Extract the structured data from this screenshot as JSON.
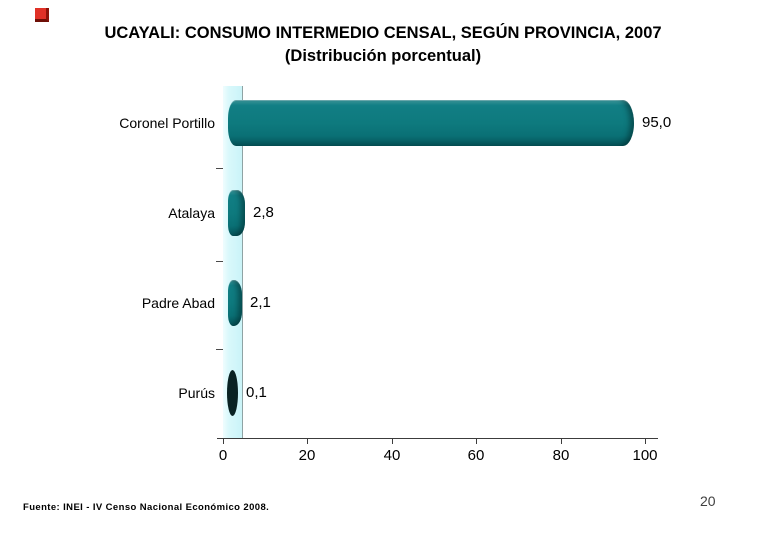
{
  "slide": {
    "title_line1": "UCAYALI: CONSUMO INTERMEDIO CENSAL, SEGÚN PROVINCIA, 2007",
    "title_line2": "(Distribución porcentual)",
    "source": "Fuente: INEI - IV Censo Nacional Económico 2008.",
    "page_number": "20",
    "accent_color": "#e03127"
  },
  "chart_data": {
    "type": "bar",
    "orientation": "horizontal",
    "title": "UCAYALI: CONSUMO INTERMEDIO CENSAL, SEGÚN PROVINCIA, 2007",
    "subtitle": "(Distribución porcentual)",
    "categories": [
      "Coronel Portillo",
      "Atalaya",
      "Padre Abad",
      "Purús"
    ],
    "values": [
      95.0,
      2.8,
      2.1,
      0.1
    ],
    "value_labels": [
      "95,0",
      "2,8",
      "2,1",
      "0,1"
    ],
    "x_ticks": [
      0,
      20,
      40,
      60,
      80,
      100
    ],
    "xlim": [
      0,
      100
    ],
    "grid": false,
    "legend": false,
    "bar_color": "#0e7a7e",
    "tiny_bar_color": "#0a2223",
    "wall_color": "#c9f3f8",
    "background_color": "#ffffff"
  }
}
